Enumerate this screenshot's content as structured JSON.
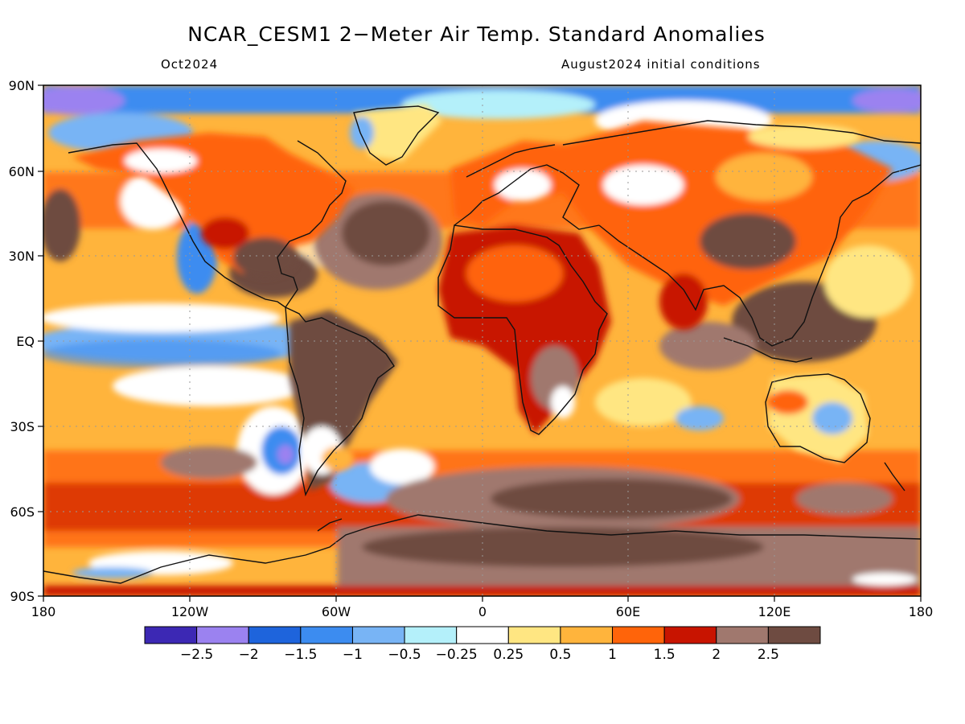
{
  "title": "NCAR_CESM1 2−Meter Air Temp. Standard Anomalies",
  "valid_month": "Oct2024",
  "init_text": "August2024 initial conditions",
  "lat_labels": [
    "90N",
    "60N",
    "30N",
    "EQ",
    "30S",
    "60S",
    "90S"
  ],
  "lon_labels": [
    "180",
    "120W",
    "60W",
    "0",
    "60E",
    "120E",
    "180"
  ],
  "colorbar": {
    "colors": [
      "#3c28b4",
      "#9b82f0",
      "#1e64dc",
      "#3c8cf0",
      "#78b4f5",
      "#b4f0fa",
      "#ffffff",
      "#ffe682",
      "#ffb43c",
      "#ff640a",
      "#c81400",
      "#a0786e",
      "#6e4b41"
    ],
    "labels": [
      "−2.5",
      "−2",
      "−1.5",
      "−1",
      "−0.5",
      "−0.25",
      "0.25",
      "0.5",
      "1",
      "1.5",
      "2",
      "2.5"
    ]
  },
  "colors": {
    "ocean_base": "#ffb43c",
    "land_base": "#ff640a",
    "coast": "#111111",
    "frame": "#000000"
  }
}
